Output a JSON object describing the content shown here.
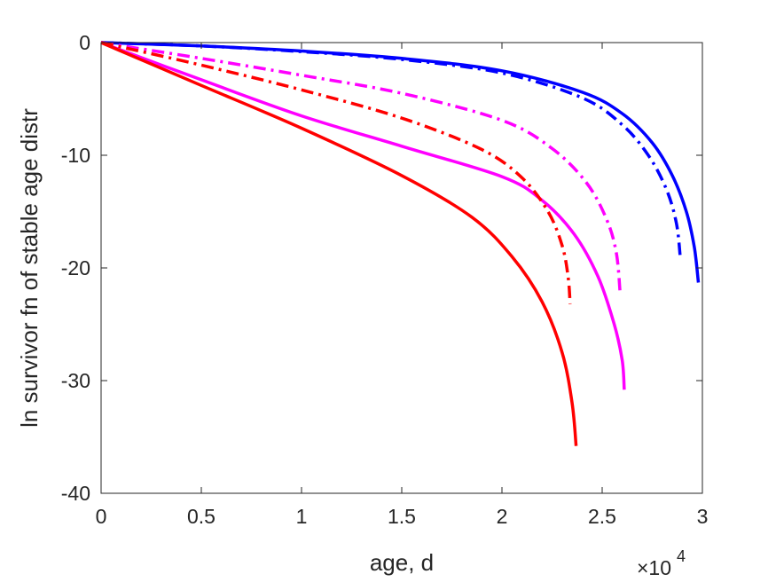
{
  "chart_data": {
    "type": "line",
    "title": "",
    "xlabel": "age, d",
    "ylabel": "ln survivor fn of stable age distr",
    "x_multiplier_label": "×10",
    "x_multiplier_exponent": "4",
    "xlim": [
      0,
      30000
    ],
    "ylim": [
      -40,
      0
    ],
    "x_tick_values": [
      0,
      5000,
      10000,
      15000,
      20000,
      25000,
      30000
    ],
    "x_tick_labels": [
      "0",
      "0.5",
      "1",
      "1.5",
      "2",
      "2.5",
      "3"
    ],
    "y_tick_values": [
      0,
      -10,
      -20,
      -30,
      -40
    ],
    "y_tick_labels": [
      "0",
      "-10",
      "-20",
      "-30",
      "-40"
    ],
    "grid": false,
    "legend": "none",
    "series": [
      {
        "color": "#0000ff",
        "style": "solid",
        "points": [
          [
            0,
            0
          ],
          [
            5000,
            -0.3
          ],
          [
            10000,
            -0.75
          ],
          [
            15000,
            -1.4
          ],
          [
            20000,
            -2.5
          ],
          [
            24000,
            -4.4
          ],
          [
            26000,
            -6.3
          ],
          [
            27500,
            -8.9
          ],
          [
            28500,
            -11.8
          ],
          [
            29200,
            -15.0
          ],
          [
            29600,
            -18.2
          ],
          [
            29800,
            -21.3
          ]
        ]
      },
      {
        "color": "#0000ff",
        "style": "dashdot",
        "points": [
          [
            0,
            0
          ],
          [
            5000,
            -0.3
          ],
          [
            10000,
            -0.8
          ],
          [
            15000,
            -1.5
          ],
          [
            20000,
            -2.7
          ],
          [
            24000,
            -4.9
          ],
          [
            26000,
            -7.3
          ],
          [
            27300,
            -10.0
          ],
          [
            28200,
            -13.0
          ],
          [
            28700,
            -16.0
          ],
          [
            28900,
            -19.1
          ]
        ]
      },
      {
        "color": "#ff00ff",
        "style": "dashdot",
        "points": [
          [
            0,
            0
          ],
          [
            5000,
            -1.4
          ],
          [
            10000,
            -2.9
          ],
          [
            15000,
            -4.5
          ],
          [
            20000,
            -6.9
          ],
          [
            22500,
            -9.4
          ],
          [
            24200,
            -12.4
          ],
          [
            25200,
            -15.6
          ],
          [
            25700,
            -18.6
          ],
          [
            25900,
            -22.3
          ]
        ]
      },
      {
        "color": "#ff00ff",
        "style": "solid",
        "points": [
          [
            0,
            0
          ],
          [
            5000,
            -3.3
          ],
          [
            10000,
            -6.5
          ],
          [
            15000,
            -9.2
          ],
          [
            20000,
            -11.9
          ],
          [
            22000,
            -14.0
          ],
          [
            23600,
            -17.0
          ],
          [
            24800,
            -20.8
          ],
          [
            25600,
            -25.0
          ],
          [
            26000,
            -28.2
          ],
          [
            26100,
            -30.8
          ]
        ]
      },
      {
        "color": "#ff0000",
        "style": "dashdot",
        "points": [
          [
            0,
            0
          ],
          [
            5000,
            -2.0
          ],
          [
            10000,
            -4.2
          ],
          [
            15000,
            -6.7
          ],
          [
            19000,
            -9.5
          ],
          [
            21000,
            -12.0
          ],
          [
            22300,
            -15.0
          ],
          [
            23000,
            -18.0
          ],
          [
            23300,
            -20.8
          ],
          [
            23400,
            -23.2
          ]
        ]
      },
      {
        "color": "#ff0000",
        "style": "solid",
        "points": [
          [
            0,
            0
          ],
          [
            5000,
            -3.8
          ],
          [
            10000,
            -7.6
          ],
          [
            15000,
            -11.8
          ],
          [
            18500,
            -15.5
          ],
          [
            20500,
            -19.0
          ],
          [
            22000,
            -23.0
          ],
          [
            23000,
            -27.5
          ],
          [
            23500,
            -32.0
          ],
          [
            23700,
            -35.8
          ]
        ]
      }
    ]
  }
}
